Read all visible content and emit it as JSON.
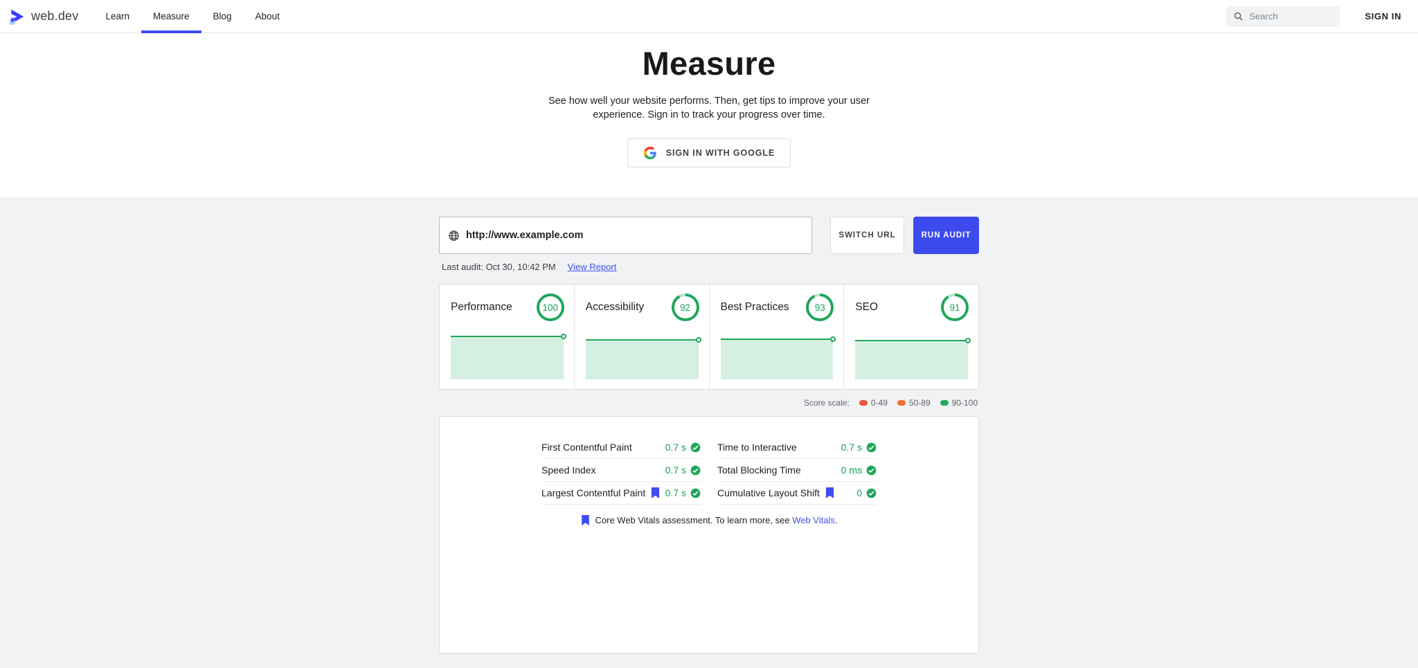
{
  "colors": {
    "accent": "#3d4bee",
    "link": "#4252ef",
    "green": "#1fa65a",
    "green_text": "#16a05a",
    "green_fill": "#d5efe0",
    "green_light_arc": "#b9e6cc",
    "section_bg": "#f1f2f4"
  },
  "nav": {
    "logo_text": "web.dev",
    "items": [
      {
        "label": "Learn",
        "active": false
      },
      {
        "label": "Measure",
        "active": true
      },
      {
        "label": "Blog",
        "active": false
      },
      {
        "label": "About",
        "active": false
      }
    ],
    "search_placeholder": "Search",
    "sign_in_label": "SIGN IN"
  },
  "hero": {
    "title": "Measure",
    "subtitle": "See how well your website performs. Then, get tips to improve your user experience. Sign in to track your progress over time.",
    "google_button_label": "SIGN IN WITH GOOGLE"
  },
  "audit": {
    "url_value": "http://www.example.com",
    "switch_button_label": "SWITCH URL",
    "run_button_label": "RUN AUDIT",
    "last_audit_text": "Last audit: Oct 30, 10:42 PM",
    "view_report_label": "View Report"
  },
  "scores": {
    "cards": [
      {
        "label": "Performance",
        "score": 100
      },
      {
        "label": "Accessibility",
        "score": 92
      },
      {
        "label": "Best Practices",
        "score": 93
      },
      {
        "label": "SEO",
        "score": 91
      }
    ]
  },
  "score_scale": {
    "label": "Score scale:",
    "ranges": [
      {
        "label": "0-49",
        "color": "#e8523e"
      },
      {
        "label": "50-89",
        "color": "#ef7133"
      },
      {
        "label": "90-100",
        "color": "#21aa5e"
      }
    ]
  },
  "metrics": {
    "columns": [
      [
        {
          "label": "First Contentful Paint",
          "value": "0.7 s",
          "bookmark": false
        },
        {
          "label": "Speed Index",
          "value": "0.7 s",
          "bookmark": false
        },
        {
          "label": "Largest Contentful Paint",
          "value": "0.7 s",
          "bookmark": true
        }
      ],
      [
        {
          "label": "Time to Interactive",
          "value": "0.7 s",
          "bookmark": false
        },
        {
          "label": "Total Blocking Time",
          "value": "0 ms",
          "bookmark": false
        },
        {
          "label": "Cumulative Layout Shift",
          "value": "0",
          "bookmark": true
        }
      ]
    ],
    "note": {
      "prefix": "Core Web Vitals assessment. To learn more, see ",
      "link_label": "Web Vitals",
      "suffix": "."
    }
  }
}
